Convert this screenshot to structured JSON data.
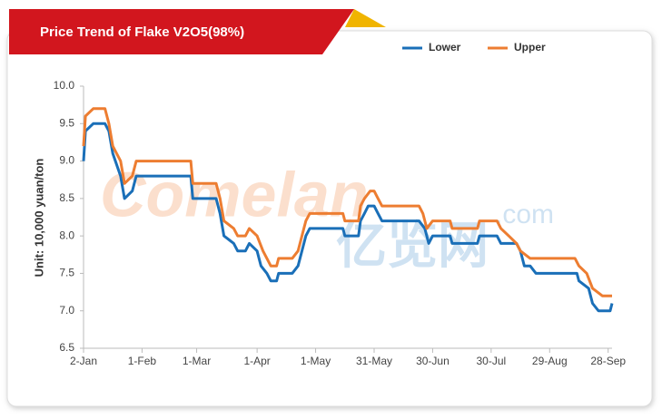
{
  "chart_data": {
    "type": "line",
    "title": "Price Trend of Flake V2O5(98%)",
    "y_label": "Unit: 10,000 yuan/ton",
    "watermark": {
      "brand": "Comelan",
      "domain": ".com",
      "chinese": "亿览网"
    },
    "legend": "top-right",
    "grid": false,
    "xlim": [
      "2-Jan",
      "30-Sep"
    ],
    "xticks": [
      "2-Jan",
      "1-Feb",
      "1-Mar",
      "1-Apr",
      "1-May",
      "31-May",
      "30-Jun",
      "30-Jul",
      "29-Aug",
      "28-Sep"
    ],
    "ylim": [
      6.5,
      10
    ],
    "yticks": [
      {
        "value": 10,
        "label": "10.0"
      },
      9.5,
      {
        "value": 9,
        "label": "9.0"
      },
      8.5,
      {
        "value": 8,
        "label": "8.0"
      },
      7.5,
      {
        "value": 7,
        "label": "7.0"
      },
      6.5
    ],
    "series": [
      {
        "name": "Lower",
        "color": "#1a6fb8",
        "x": [
          "2-Jan",
          "3-Jan",
          "7-Jan",
          "13-Jan",
          "15-Jan",
          "17-Jan",
          "21-Jan",
          "23-Jan",
          "27-Jan",
          "29-Jan",
          "26-Feb",
          "27-Feb",
          "11-Mar",
          "13-Mar",
          "15-Mar",
          "20-Mar",
          "22-Mar",
          "26-Mar",
          "28-Mar",
          "1-Apr",
          "3-Apr",
          "6-Apr",
          "8-Apr",
          "11-Apr",
          "12-Apr",
          "19-Apr",
          "22-Apr",
          "24-Apr",
          "26-Apr",
          "28-Apr",
          "15-May",
          "16-May",
          "23-May",
          "24-May",
          "26-May",
          "28-May",
          "31-May",
          "2-Jun",
          "4-Jun",
          "23-Jun",
          "26-Jun",
          "28-Jun",
          "30-Jun",
          "9-Jul",
          "10-Jul",
          "23-Jul",
          "24-Jul",
          "2-Aug",
          "4-Aug",
          "12-Aug",
          "14-Aug",
          "16-Aug",
          "19-Aug",
          "22-Aug",
          "12-Sep",
          "13-Sep",
          "18-Sep",
          "20-Sep",
          "23-Sep",
          "29-Sep",
          "30-Sep"
        ],
        "values": [
          9.0,
          9.4,
          9.5,
          9.5,
          9.4,
          9.1,
          8.8,
          8.5,
          8.6,
          8.8,
          8.8,
          8.5,
          8.5,
          8.3,
          8.0,
          7.9,
          7.8,
          7.8,
          7.9,
          7.8,
          7.6,
          7.5,
          7.4,
          7.4,
          7.5,
          7.5,
          7.6,
          7.8,
          8.0,
          8.1,
          8.1,
          8.0,
          8.0,
          8.2,
          8.3,
          8.4,
          8.4,
          8.3,
          8.2,
          8.2,
          8.1,
          7.9,
          8.0,
          8.0,
          7.9,
          7.9,
          8.0,
          8.0,
          7.9,
          7.9,
          7.8,
          7.6,
          7.6,
          7.5,
          7.5,
          7.4,
          7.3,
          7.1,
          7.0,
          7.0,
          7.1
        ]
      },
      {
        "name": "Upper",
        "color": "#ed7d31",
        "x": [
          "2-Jan",
          "3-Jan",
          "7-Jan",
          "13-Jan",
          "15-Jan",
          "17-Jan",
          "21-Jan",
          "23-Jan",
          "27-Jan",
          "29-Jan",
          "26-Feb",
          "27-Feb",
          "11-Mar",
          "13-Mar",
          "15-Mar",
          "20-Mar",
          "22-Mar",
          "26-Mar",
          "28-Mar",
          "1-Apr",
          "4-Apr",
          "8-Apr",
          "11-Apr",
          "12-Apr",
          "19-Apr",
          "22-Apr",
          "24-Apr",
          "26-Apr",
          "28-Apr",
          "15-May",
          "16-May",
          "23-May",
          "24-May",
          "26-May",
          "29-May",
          "31-May",
          "2-Jun",
          "4-Jun",
          "23-Jun",
          "25-Jun",
          "27-Jun",
          "30-Jun",
          "9-Jul",
          "10-Jul",
          "23-Jul",
          "24-Jul",
          "2-Aug",
          "4-Aug",
          "8-Aug",
          "12-Aug",
          "14-Aug",
          "19-Aug",
          "11-Sep",
          "13-Sep",
          "17-Sep",
          "20-Sep",
          "25-Sep",
          "30-Sep"
        ],
        "values": [
          9.2,
          9.6,
          9.7,
          9.7,
          9.5,
          9.2,
          9.0,
          8.7,
          8.8,
          9.0,
          9.0,
          8.7,
          8.7,
          8.5,
          8.2,
          8.1,
          8.0,
          8.0,
          8.1,
          8.0,
          7.8,
          7.6,
          7.6,
          7.7,
          7.7,
          7.8,
          8.0,
          8.2,
          8.3,
          8.3,
          8.2,
          8.2,
          8.4,
          8.5,
          8.6,
          8.6,
          8.5,
          8.4,
          8.4,
          8.3,
          8.1,
          8.2,
          8.2,
          8.1,
          8.1,
          8.2,
          8.2,
          8.1,
          8.0,
          7.9,
          7.8,
          7.7,
          7.7,
          7.6,
          7.5,
          7.3,
          7.2,
          7.2
        ]
      }
    ]
  }
}
